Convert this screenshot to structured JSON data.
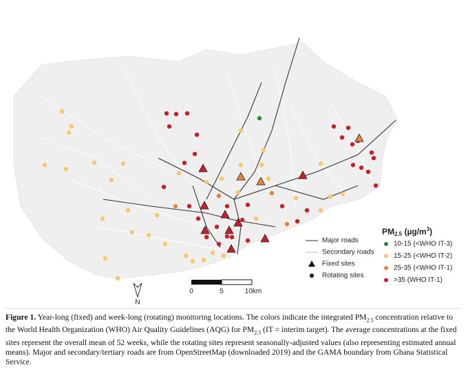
{
  "legend": {
    "roads": [
      "Major roads",
      "Secondary roads"
    ],
    "sites": [
      "Fixed sites",
      "Rotating sites"
    ],
    "pm_title": {
      "main": "PM",
      "sub": "2.5",
      "unit_open": " (µg/m",
      "sup": "3",
      "unit_close": ")"
    },
    "classes": [
      {
        "label": "10-15 (<WHO IT-3)",
        "color": "#2e8b3e"
      },
      {
        "label": "15-25 (<WHO IT-2)",
        "color": "#f5c96a"
      },
      {
        "label": "25-35 (<WHO IT-1)",
        "color": "#e8843a"
      },
      {
        "label": ">35 (WHO IT-1)",
        "color": "#c8202a"
      }
    ]
  },
  "scale_bar": {
    "labels": [
      "0",
      "5",
      "10km"
    ]
  },
  "north": "N",
  "caption": {
    "label": "Figure 1.",
    "parts": [
      {
        "text": " Year-long (fixed) and week-long (rotating) monitoring locations. The colors indicate the integrated PM"
      },
      {
        "sub": "2.5"
      },
      {
        "text": " concentration relative to the World Health Organization (WHO) Air Quality Guidelines (AQG) for PM"
      },
      {
        "sub": "2.5"
      },
      {
        "text": " (IT = interim target). The average concentrations at the fixed sites represent the overall mean of 52 weeks, while the rotating sites represent seasonally-adjusted values (also representing estimated annual means). Major and secondary/tertiary roads are from OpenStreetMap (downloaded 2019) and the GAMA boundary from Ghana Statistical Service."
      }
    ]
  }
}
